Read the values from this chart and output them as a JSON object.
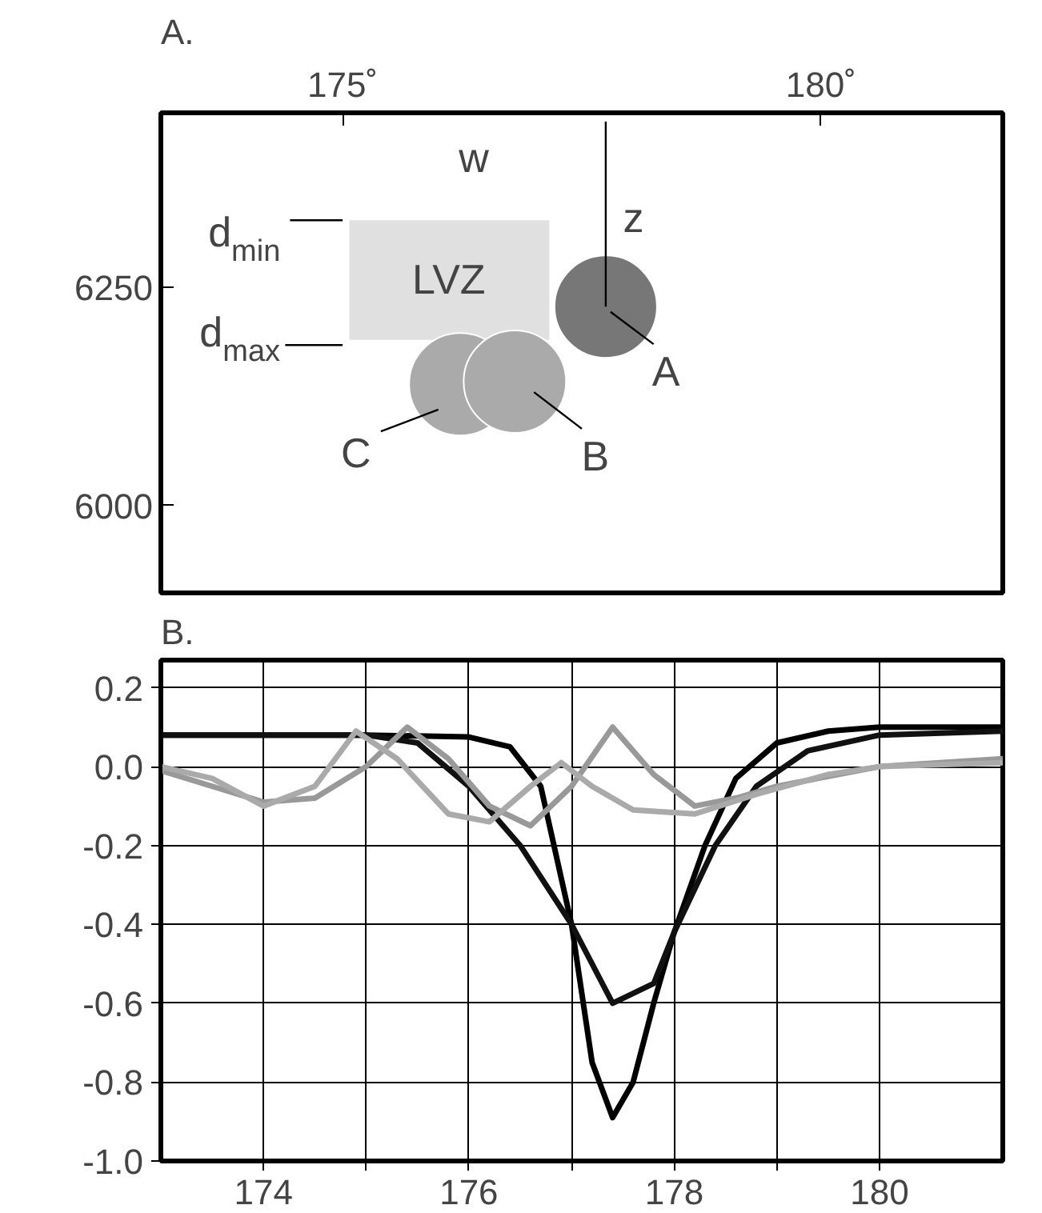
{
  "chart_data": [
    {
      "type": "scatter",
      "title": "A.",
      "xlim": [
        173.1,
        181.9
      ],
      "ylim": [
        5900,
        6450
      ],
      "xticks": [
        {
          "value": 175,
          "label": "175˚"
        },
        {
          "value": 180,
          "label": "180˚"
        }
      ],
      "yticks": [
        6250,
        6000
      ],
      "grid": false,
      "marker": "circle",
      "series": [
        {
          "type": "bar",
          "color": "#e0e0e0",
          "x": [
            176.115
          ],
          "base": [
            6190
          ],
          "values": [
            137
          ]
        },
        {
          "color": "#777777",
          "x": [
            177.75
          ],
          "values": [
            6228
          ]
        },
        {
          "color": "#aaaaaa",
          "x": [
            176.23
          ],
          "values": [
            6139
          ]
        },
        {
          "color": "#aaaaaa",
          "x": [
            176.8
          ],
          "values": [
            6142
          ]
        }
      ],
      "annotations": [
        "w",
        "z",
        "LVZ",
        "d$_{min}$",
        "d$_{max}$",
        "A",
        "B",
        "C"
      ]
    },
    {
      "type": "line",
      "title": "B.",
      "xlim": [
        173,
        181.2
      ],
      "ylim": [
        -1.0,
        0.27
      ],
      "xticks": [
        {
          "value": 174,
          "label": "174"
        },
        {
          "value": 175,
          "label": null
        },
        {
          "value": 176,
          "label": "176"
        },
        {
          "value": 177,
          "label": null
        },
        {
          "value": 178,
          "label": "178"
        },
        {
          "value": 179,
          "label": null
        },
        {
          "value": 180,
          "label": "180"
        }
      ],
      "yticks": [
        {
          "value": 0.2,
          "label": "0.2"
        },
        {
          "value": 0,
          "label": "0.0"
        },
        {
          "value": -0.2,
          "label": "-0.2"
        },
        {
          "value": -0.4,
          "label": "-0.4"
        },
        {
          "value": -0.6,
          "label": "-0.6"
        },
        {
          "value": -0.8,
          "label": "-0.8"
        },
        {
          "value": -1.0,
          "label": "-1.0"
        }
      ],
      "grid": true,
      "marker": "none",
      "line_style": "solid",
      "series": [
        {
          "color": "#000000",
          "x": [
            173,
            175,
            176,
            176.4,
            176.7,
            177,
            177.2,
            177.4,
            177.6,
            177.8,
            178,
            178.3,
            178.6,
            179,
            179.5,
            180,
            181.2
          ],
          "values": [
            0.08,
            0.08,
            0.075,
            0.05,
            -0.05,
            -0.4,
            -0.75,
            -0.89,
            -0.8,
            -0.6,
            -0.42,
            -0.2,
            -0.03,
            0.06,
            0.09,
            0.1,
            0.1
          ]
        },
        {
          "color": "#111111",
          "x": [
            173,
            175,
            175.5,
            176,
            176.5,
            177,
            177.4,
            177.8,
            178,
            178.4,
            178.8,
            179.3,
            180,
            181.2
          ],
          "values": [
            0.08,
            0.08,
            0.06,
            -0.05,
            -0.2,
            -0.4,
            -0.6,
            -0.55,
            -0.42,
            -0.2,
            -0.05,
            0.04,
            0.08,
            0.09
          ]
        },
        {
          "color": "#999999",
          "x": [
            173,
            173.5,
            174,
            174.5,
            175,
            175.4,
            175.8,
            176.2,
            176.6,
            177,
            177.4,
            177.8,
            178.2,
            178.6,
            179,
            180,
            181.2
          ],
          "values": [
            -0.01,
            -0.05,
            -0.09,
            -0.08,
            0.0,
            0.1,
            0.02,
            -0.1,
            -0.15,
            -0.05,
            0.1,
            -0.02,
            -0.1,
            -0.08,
            -0.05,
            0.0,
            0.02
          ]
        },
        {
          "color": "#aaaaaa",
          "x": [
            173,
            173.5,
            174,
            174.5,
            174.9,
            175.3,
            175.8,
            176.2,
            176.6,
            176.9,
            177.2,
            177.6,
            178.2,
            178.8,
            179.5,
            180,
            181.2
          ],
          "values": [
            0.0,
            -0.03,
            -0.1,
            -0.05,
            0.09,
            0.02,
            -0.12,
            -0.14,
            -0.05,
            0.01,
            -0.05,
            -0.11,
            -0.12,
            -0.07,
            -0.02,
            0.0,
            0.01
          ]
        }
      ]
    }
  ]
}
